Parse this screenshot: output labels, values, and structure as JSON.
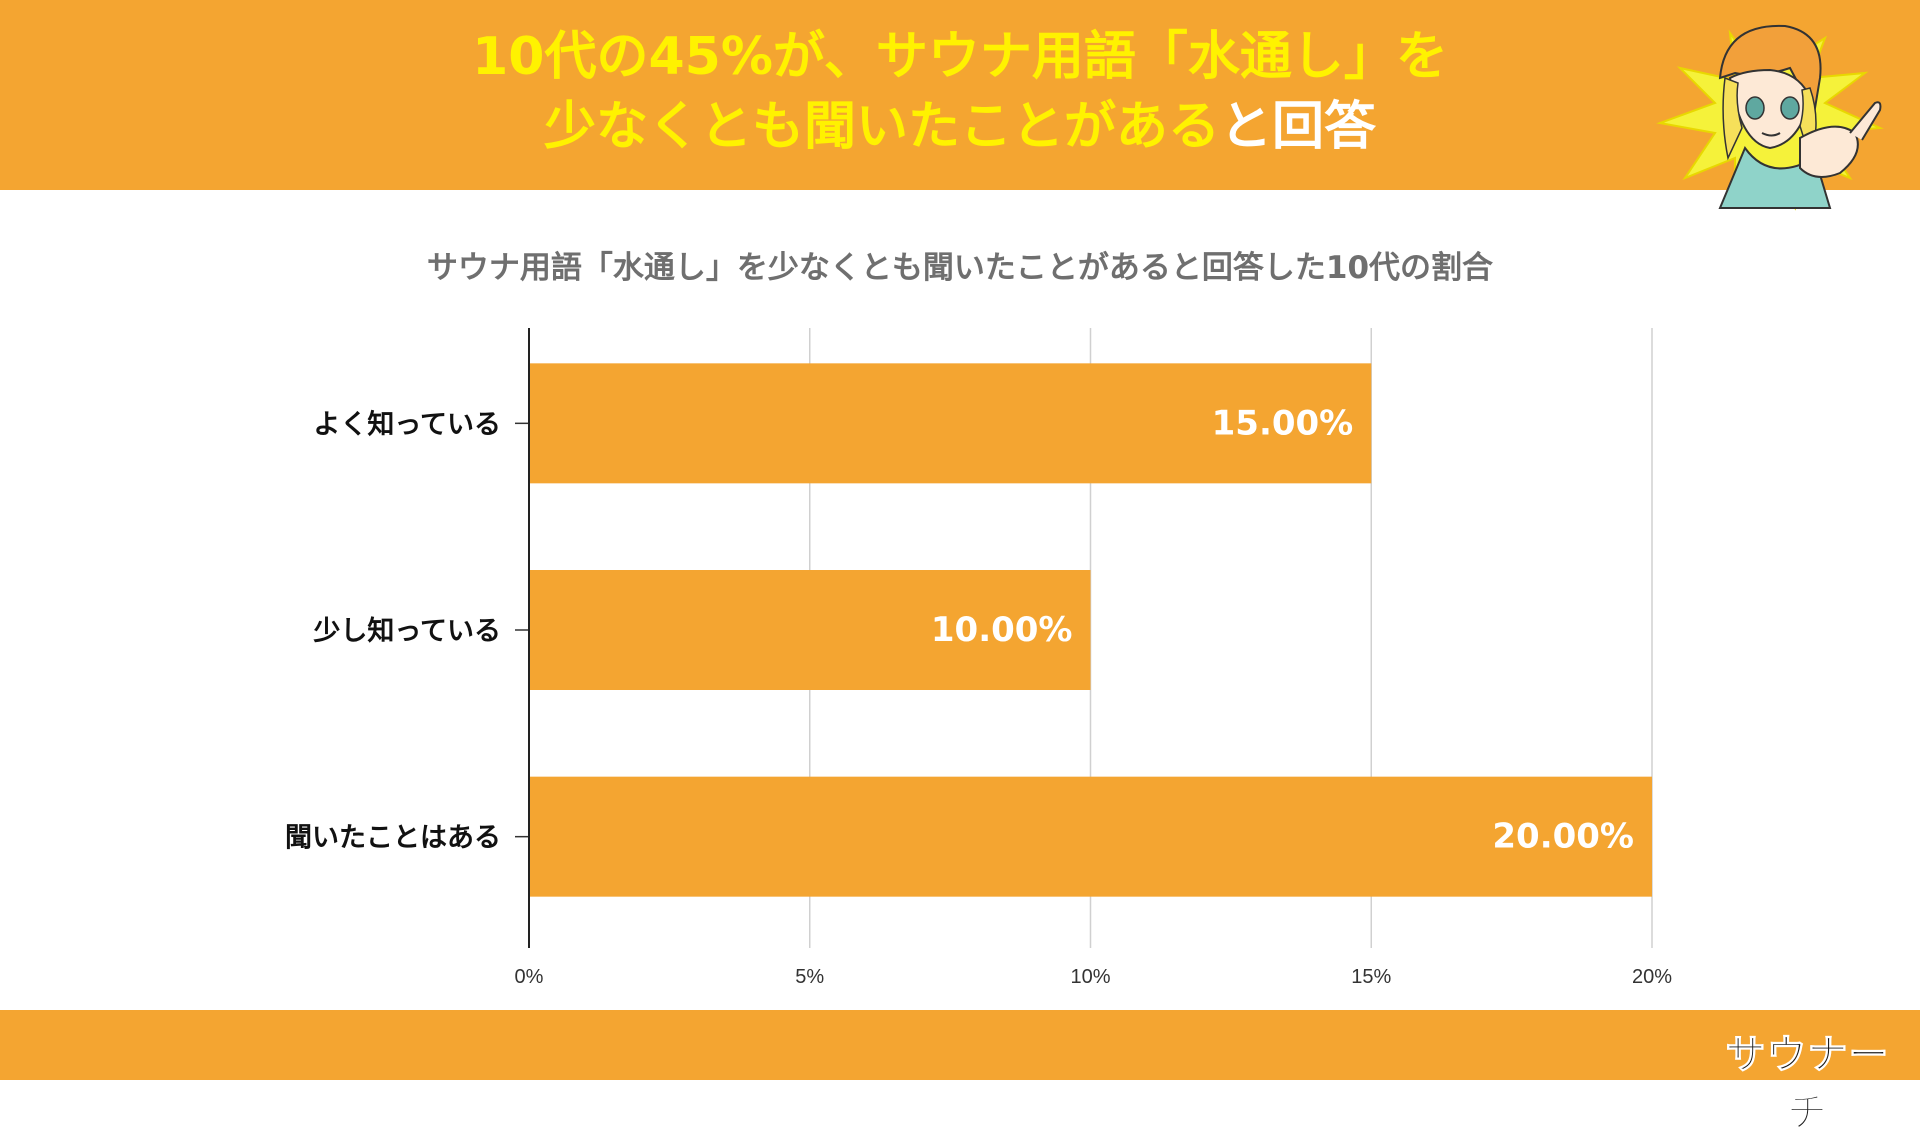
{
  "header": {
    "headline_line1": "10代の45%が、サウナ用語「水通し」を",
    "headline_line2_yellow": "少なくとも聞いたことがある",
    "headline_line2_white": "と回答",
    "bg_color": "#f4a531",
    "highlight_color": "#fff200",
    "mascot_icon": "pointing-girl-mascot-icon"
  },
  "chart_data": {
    "type": "bar",
    "orientation": "horizontal",
    "title": "サウナ用語「水通し」を少なくとも聞いたことがあると回答した10代の割合",
    "categories": [
      "よく知っている",
      "少し知っている",
      "聞いたことはある"
    ],
    "values": [
      15,
      10,
      20
    ],
    "value_labels": [
      "15.00%",
      "10.00%",
      "20.00%"
    ],
    "xlim": [
      0,
      20
    ],
    "xticks": [
      "0%",
      "5%",
      "10%",
      "15%",
      "20%"
    ],
    "grid": true,
    "bar_color": "#f4a531"
  },
  "footer": {
    "logo_text": "サウナーチ",
    "logo_icon": "sauna-logo-icon"
  }
}
